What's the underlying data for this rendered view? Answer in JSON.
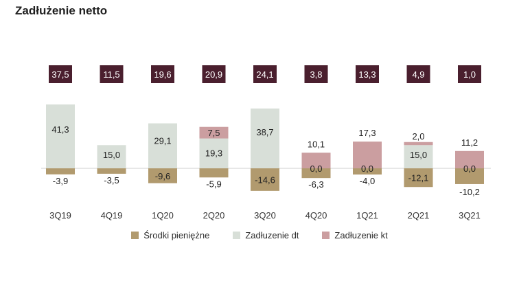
{
  "title": "Zadłużenie netto",
  "chart_data": {
    "type": "bar",
    "stacked": true,
    "title": "Zadłużenie netto",
    "categories": [
      "3Q19",
      "4Q19",
      "1Q20",
      "2Q20",
      "3Q20",
      "4Q20",
      "1Q21",
      "2Q21",
      "3Q21"
    ],
    "totals": [
      37.5,
      11.5,
      19.6,
      20.9,
      24.1,
      3.8,
      13.3,
      4.9,
      1.0
    ],
    "total_labels": [
      "37,5",
      "11,5",
      "19,6",
      "20,9",
      "24,1",
      "3,8",
      "13,3",
      "4,9",
      "1,0"
    ],
    "series": [
      {
        "name": "Środki pieniężne",
        "color": "#b19a6e",
        "values": [
          -3.9,
          -3.5,
          -9.6,
          -5.9,
          -14.6,
          -6.3,
          -4.0,
          -12.1,
          -10.2
        ],
        "labels": [
          "-3,9",
          "-3,5",
          "-9,6",
          "-5,9",
          "-14,6",
          "-6,3",
          "-4,0",
          "-12,1",
          "-10,2"
        ]
      },
      {
        "name": "Zadłuzenie dt",
        "color": "#d8dfd8",
        "values": [
          41.3,
          15.0,
          29.1,
          19.3,
          38.7,
          0.0,
          0.0,
          15.0,
          0.0
        ],
        "labels": [
          "41,3",
          "15,0",
          "29,1",
          "19,3",
          "38,7",
          "0,0",
          "0,0",
          "15,0",
          "0,0"
        ]
      },
      {
        "name": "Zadłuzenie kt",
        "color": "#cb9ea0",
        "values": [
          0.0,
          0.0,
          0.0,
          7.5,
          0.0,
          10.1,
          17.3,
          2.0,
          11.2
        ],
        "labels": [
          "",
          "",
          "",
          "7,5",
          "",
          "10,1",
          "17,3",
          "2,0",
          "11,2"
        ]
      }
    ],
    "total_box_color": "#4a1f2e"
  }
}
